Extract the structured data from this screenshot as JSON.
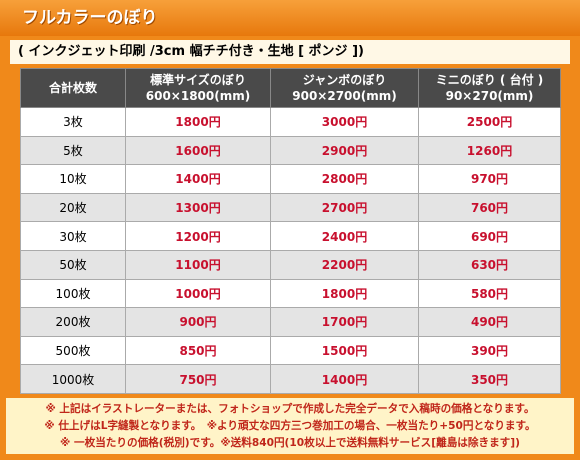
{
  "header": {
    "title": "フルカラーのぼり",
    "subtitle": "( インクジェット印刷 /3cm 幅チチ付き・生地 [ ポンジ ])"
  },
  "table": {
    "columns": [
      [
        "合計枚数"
      ],
      [
        "標準サイズのぼり",
        "600×1800(mm)"
      ],
      [
        "ジャンボのぼり",
        "900×2700(mm)"
      ],
      [
        "ミニのぼり ( 台付 )",
        "90×270(mm)"
      ]
    ],
    "rows": [
      [
        "3枚",
        "1800円",
        "3000円",
        "2500円"
      ],
      [
        "5枚",
        "1600円",
        "2900円",
        "1260円"
      ],
      [
        "10枚",
        "1400円",
        "2800円",
        "970円"
      ],
      [
        "20枚",
        "1300円",
        "2700円",
        "760円"
      ],
      [
        "30枚",
        "1200円",
        "2400円",
        "690円"
      ],
      [
        "50枚",
        "1100円",
        "2200円",
        "630円"
      ],
      [
        "100枚",
        "1000円",
        "1800円",
        "580円"
      ],
      [
        "200枚",
        "900円",
        "1700円",
        "490円"
      ],
      [
        "500枚",
        "850円",
        "1500円",
        "390円"
      ],
      [
        "1000枚",
        "750円",
        "1400円",
        "350円"
      ]
    ]
  },
  "notes": [
    "※ 上記はイラストレーターまたは、フォトショップで作成した完全データで入稿時の価格となります。",
    "※ 仕上げはL字縫製となります。　※より頑丈な四方三つ巻加工の場合、一枚当たり+50円となります。",
    "※ 一枚当たりの価格(税別)です。※送料840円(10枚以上で送料無料サービス[離島は除きます])"
  ]
}
